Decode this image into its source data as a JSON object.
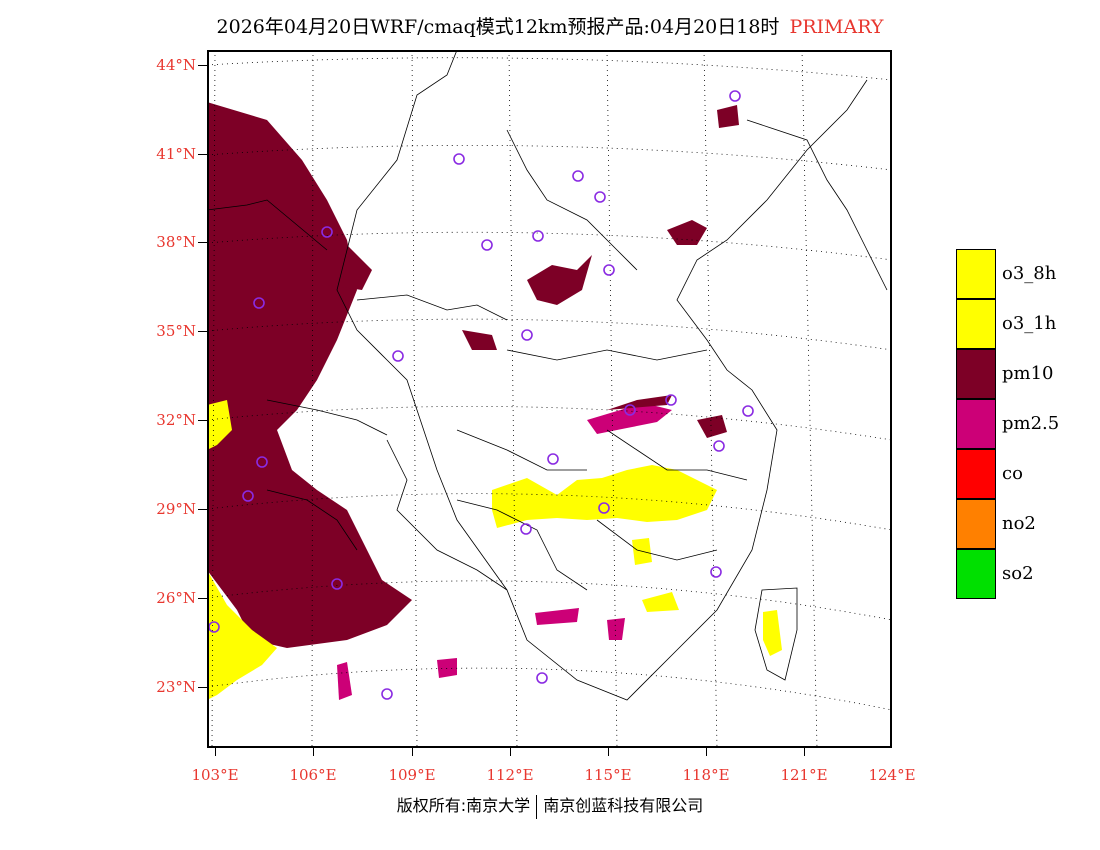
{
  "header": {
    "title": "2026年04月20日WRF/cmaq模式12km预报产品:04月20日18时",
    "pollutant_tag": "PRIMARY"
  },
  "map": {
    "latitude_labels": [
      "44°N",
      "41°N",
      "38°N",
      "35°N",
      "32°N",
      "29°N",
      "26°N",
      "23°N"
    ],
    "longitude_labels": [
      "103°E",
      "106°E",
      "109°E",
      "112°E",
      "115°E",
      "118°E",
      "121°E",
      "124°E"
    ]
  },
  "legend": {
    "items": [
      {
        "label": "o3_8h",
        "color": "#ffff00"
      },
      {
        "label": "o3_1h",
        "color": "#ffff00"
      },
      {
        "label": "pm10",
        "color": "#7d0026"
      },
      {
        "label": "pm2.5",
        "color": "#cc0077"
      },
      {
        "label": "co",
        "color": "#ff0000"
      },
      {
        "label": "no2",
        "color": "#ff8000"
      },
      {
        "label": "so2",
        "color": "#00e000"
      }
    ]
  },
  "footer": {
    "copyright_left": "版权所有:南京大学",
    "copyright_right": "南京创蓝科技有限公司"
  },
  "colors": {
    "label_red": "#e8372f",
    "pm10": "#7d0026",
    "pm25": "#cc0077",
    "o3": "#ffff00",
    "station": "#8a2be2"
  }
}
